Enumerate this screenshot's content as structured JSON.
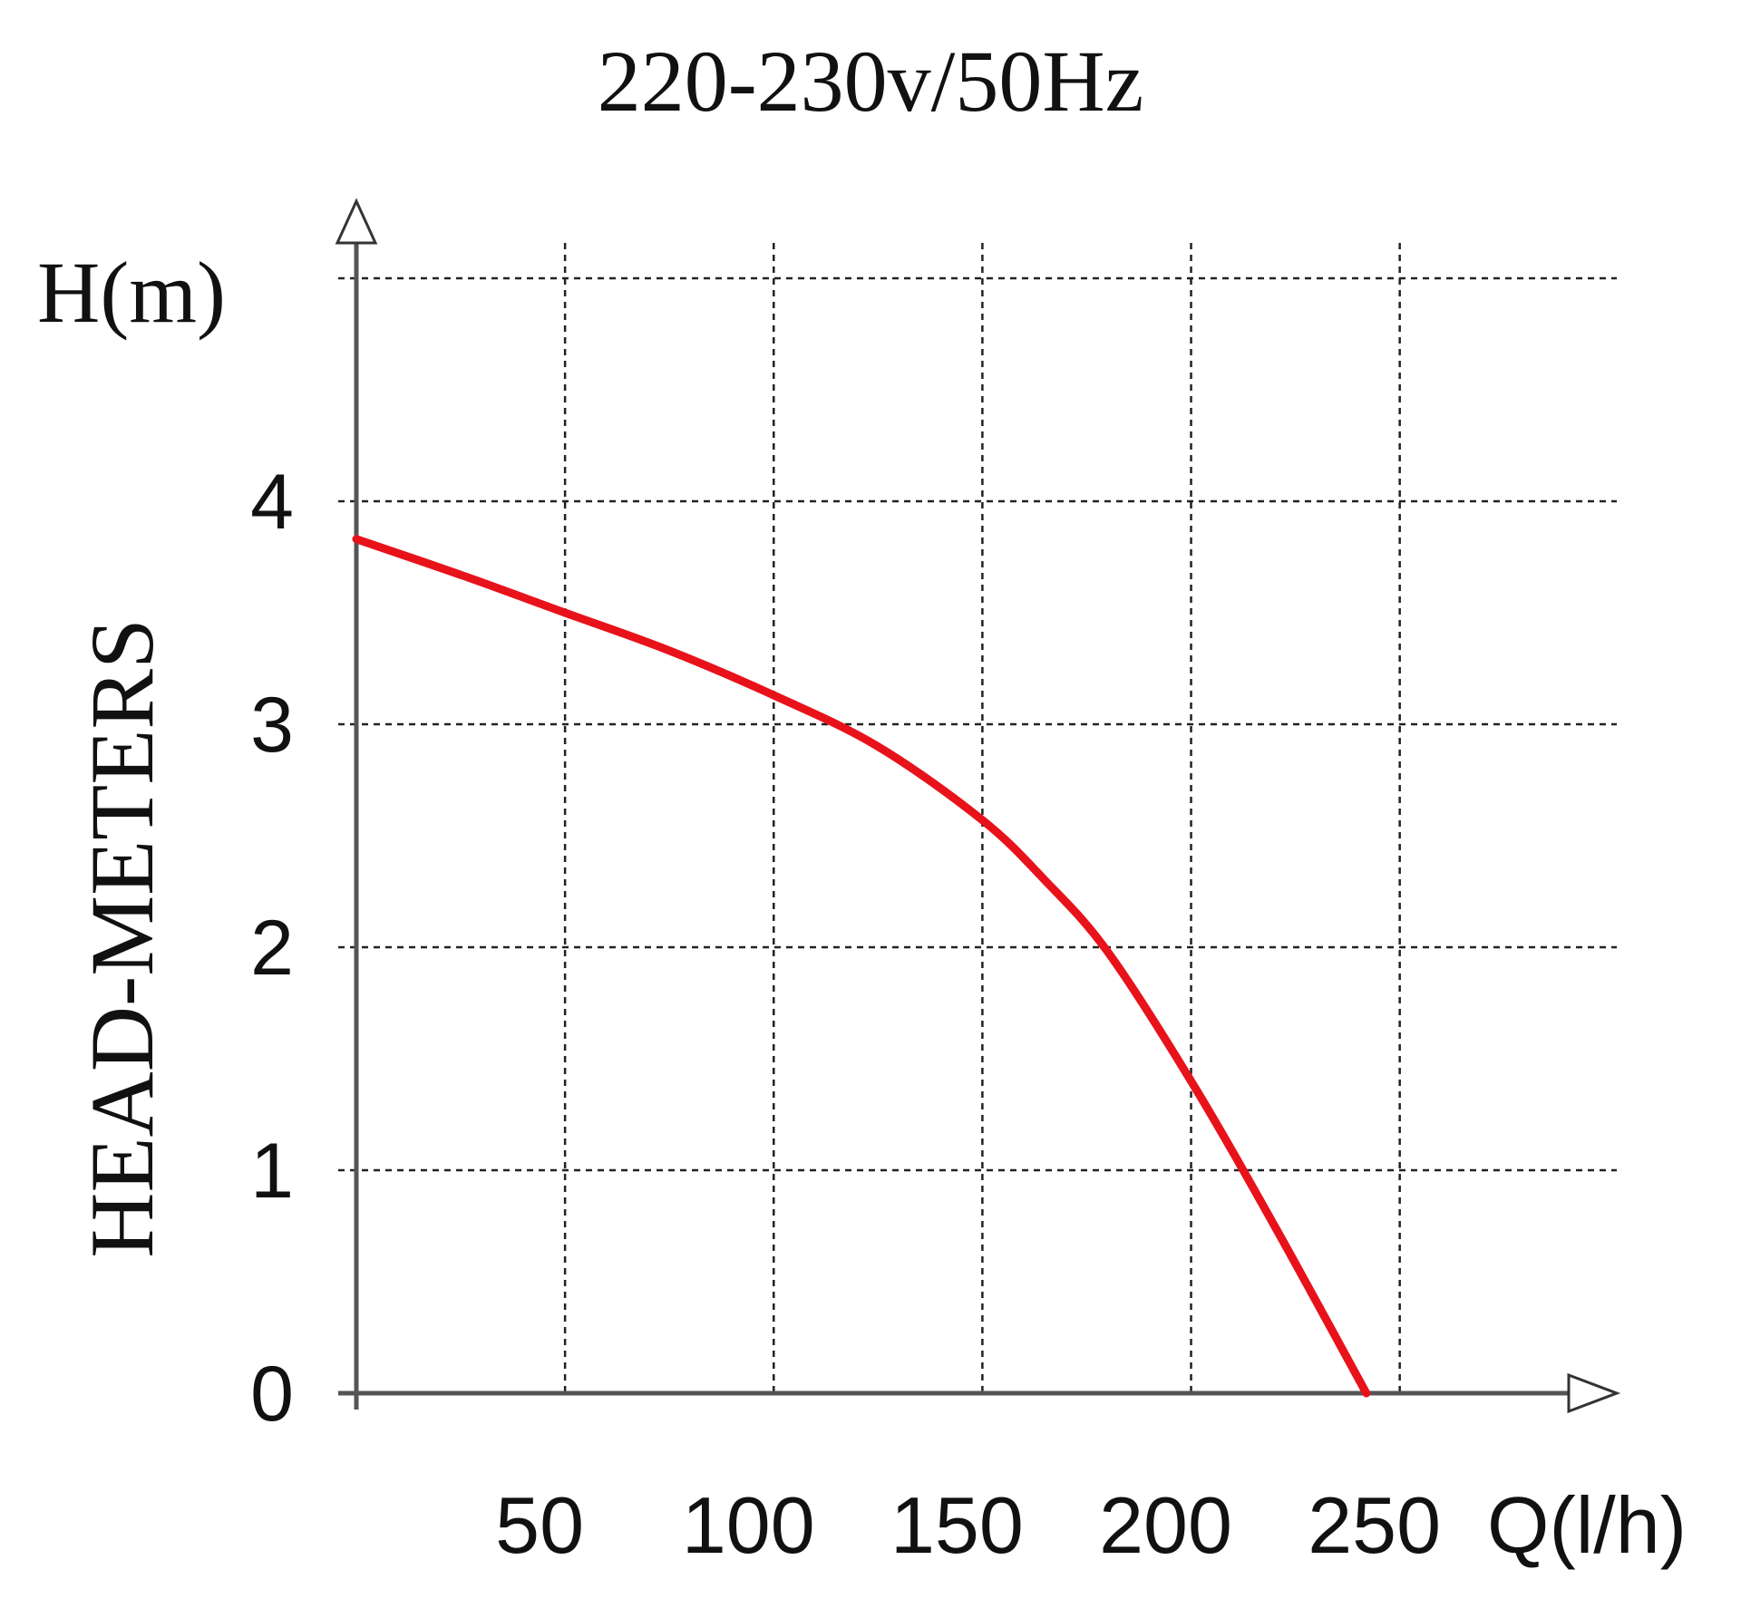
{
  "chart_data": {
    "type": "line",
    "title": "220-230v/50Hz",
    "ylabel_unit": "H(m)",
    "ylabel": "HEAD-METERS",
    "xlabel": "Q(l/h)",
    "x_ticks": [
      50,
      100,
      150,
      200,
      250
    ],
    "y_ticks": [
      0,
      1,
      2,
      3,
      4
    ],
    "xlim": [
      0,
      302
    ],
    "ylim": [
      0,
      5
    ],
    "grid": true,
    "series": [
      {
        "color": "#e8121b",
        "points": [
          [
            0,
            3.83
          ],
          [
            25,
            3.67
          ],
          [
            50,
            3.5
          ],
          [
            75,
            3.33
          ],
          [
            100,
            3.13
          ],
          [
            125,
            2.9
          ],
          [
            150,
            2.57
          ],
          [
            165,
            2.3
          ],
          [
            180,
            1.98
          ],
          [
            200,
            1.4
          ],
          [
            220,
            0.75
          ],
          [
            242,
            0.0
          ]
        ]
      }
    ]
  }
}
